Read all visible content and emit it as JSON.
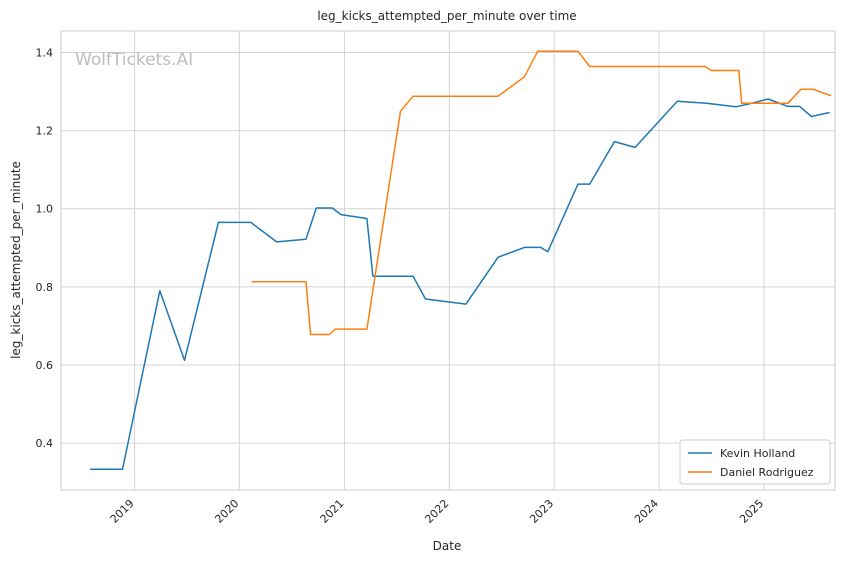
{
  "watermark": "WolfTickets.AI",
  "chart_data": {
    "type": "line",
    "title": "leg_kicks_attempted_per_minute over time",
    "xlabel": "Date",
    "ylabel": "leg_kicks_attempted_per_minute",
    "xlim": [
      "2018-04-20",
      "2025-09-05"
    ],
    "ylim": [
      0.28,
      1.455
    ],
    "x_ticks": [
      "2019-01-01",
      "2020-01-01",
      "2021-01-01",
      "2022-01-01",
      "2023-01-01",
      "2024-01-01",
      "2025-01-01"
    ],
    "x_tick_labels": [
      "2019",
      "2020",
      "2021",
      "2022",
      "2023",
      "2024",
      "2025"
    ],
    "y_ticks": [
      0.4,
      0.6,
      0.8,
      1.0,
      1.2,
      1.4
    ],
    "y_tick_labels": [
      "0.4",
      "0.6",
      "0.8",
      "1.0",
      "1.2",
      "1.4"
    ],
    "grid": true,
    "legend_position": "lower-right",
    "series": [
      {
        "name": "Kevin Holland",
        "color": "#1f77b4",
        "points": [
          [
            "2018-08-01",
            0.333
          ],
          [
            "2018-11-20",
            0.333
          ],
          [
            "2019-03-30",
            0.79
          ],
          [
            "2019-06-24",
            0.612
          ],
          [
            "2019-10-20",
            0.965
          ],
          [
            "2020-02-10",
            0.965
          ],
          [
            "2020-05-10",
            0.915
          ],
          [
            "2020-08-20",
            0.922
          ],
          [
            "2020-09-25",
            1.002
          ],
          [
            "2020-11-20",
            1.002
          ],
          [
            "2020-12-20",
            0.985
          ],
          [
            "2021-03-20",
            0.975
          ],
          [
            "2021-04-10",
            0.827
          ],
          [
            "2021-08-28",
            0.827
          ],
          [
            "2021-10-10",
            0.769
          ],
          [
            "2022-02-28",
            0.756
          ],
          [
            "2022-06-20",
            0.876
          ],
          [
            "2022-09-20",
            0.901
          ],
          [
            "2022-11-15",
            0.901
          ],
          [
            "2022-12-10",
            0.89
          ],
          [
            "2023-03-25",
            1.063
          ],
          [
            "2023-05-05",
            1.063
          ],
          [
            "2023-07-30",
            1.172
          ],
          [
            "2023-10-10",
            1.157
          ],
          [
            "2024-03-05",
            1.275
          ],
          [
            "2024-06-15",
            1.27
          ],
          [
            "2024-09-25",
            1.261
          ],
          [
            "2024-11-25",
            1.271
          ],
          [
            "2025-01-15",
            1.281
          ],
          [
            "2025-03-25",
            1.262
          ],
          [
            "2025-05-05",
            1.262
          ],
          [
            "2025-06-15",
            1.236
          ],
          [
            "2025-08-15",
            1.246
          ]
        ]
      },
      {
        "name": "Daniel Rodriguez",
        "color": "#ff7f0e",
        "points": [
          [
            "2020-02-15",
            0.813
          ],
          [
            "2020-08-20",
            0.813
          ],
          [
            "2020-09-05",
            0.678
          ],
          [
            "2020-11-10",
            0.678
          ],
          [
            "2020-11-30",
            0.692
          ],
          [
            "2021-03-20",
            0.692
          ],
          [
            "2021-07-15",
            1.25
          ],
          [
            "2021-08-28",
            1.288
          ],
          [
            "2022-06-20",
            1.288
          ],
          [
            "2022-09-20",
            1.338
          ],
          [
            "2022-11-05",
            1.403
          ],
          [
            "2023-03-25",
            1.403
          ],
          [
            "2023-05-05",
            1.364
          ],
          [
            "2024-06-10",
            1.364
          ],
          [
            "2024-07-01",
            1.354
          ],
          [
            "2024-10-05",
            1.354
          ],
          [
            "2024-10-15",
            1.27
          ],
          [
            "2025-03-25",
            1.27
          ],
          [
            "2025-05-10",
            1.306
          ],
          [
            "2025-06-20",
            1.306
          ],
          [
            "2025-08-20",
            1.29
          ]
        ]
      }
    ]
  }
}
